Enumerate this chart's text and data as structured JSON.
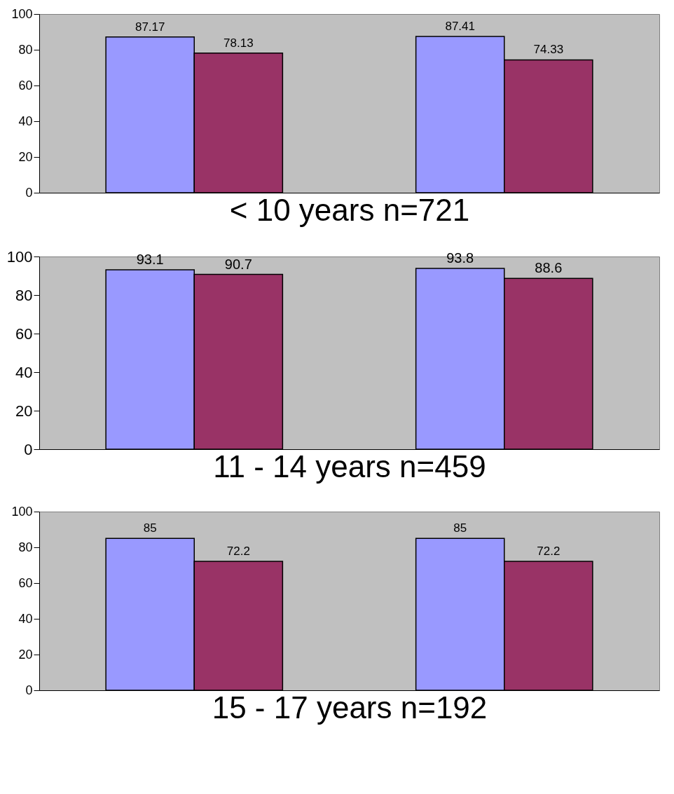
{
  "chart_data": [
    {
      "type": "bar",
      "categories": [
        null,
        null
      ],
      "xlabel": "< 10 years      n=721",
      "ylim": [
        0,
        100
      ],
      "yticks": [
        0,
        20,
        40,
        60,
        80,
        100
      ],
      "grid": false,
      "legend": false,
      "data_labels": true,
      "series": [
        {
          "color": "#9999ff",
          "values": [
            87.17,
            87.41
          ]
        },
        {
          "color": "#993366",
          "values": [
            78.13,
            74.33
          ]
        }
      ]
    },
    {
      "type": "bar",
      "categories": [
        null,
        null
      ],
      "xlabel": "11 - 14 years      n=459",
      "ylim": [
        0,
        100
      ],
      "yticks": [
        0,
        20,
        40,
        60,
        80,
        100
      ],
      "grid": false,
      "legend": false,
      "data_labels": true,
      "series": [
        {
          "color": "#9999ff",
          "values": [
            93.1,
            93.8
          ]
        },
        {
          "color": "#993366",
          "values": [
            90.7,
            88.6
          ]
        }
      ]
    },
    {
      "type": "bar",
      "categories": [
        null,
        null
      ],
      "xlabel": "15 - 17  years      n=192",
      "ylim": [
        0,
        100
      ],
      "yticks": [
        0,
        20,
        40,
        60,
        80,
        100
      ],
      "grid": false,
      "legend": false,
      "data_labels": true,
      "series": [
        {
          "color": "#9999ff",
          "values": [
            85,
            85
          ]
        },
        {
          "color": "#993366",
          "values": [
            72.2,
            72.2
          ]
        }
      ]
    }
  ]
}
